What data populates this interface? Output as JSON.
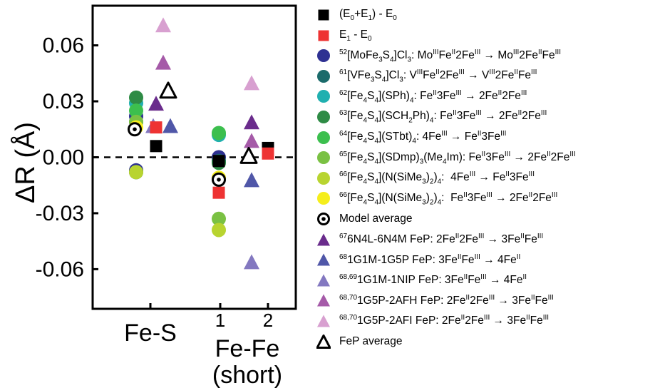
{
  "chart_data": {
    "type": "scatter",
    "ylabel": "ΔR (Å)",
    "ylim": [
      -0.07,
      0.078
    ],
    "yticks": [
      "0.06",
      "0.03",
      "0.00",
      "-0.03",
      "-0.06"
    ],
    "ytick_values": [
      0.06,
      0.03,
      0.0,
      -0.03,
      -0.06
    ],
    "x_groups": [
      {
        "label": "Fe-S"
      },
      {
        "label": "Fe-Fe",
        "sublabel": "(short)",
        "ticks": [
          "1",
          "2"
        ]
      }
    ],
    "zero_line": "dashed",
    "series": [
      {
        "name": "(E0+E1) - E0",
        "marker": "square",
        "color": "#000000",
        "points": [
          {
            "x": "Fe-S",
            "y": 0.006
          },
          {
            "x": "Fe-Fe 1",
            "y": -0.002
          },
          {
            "x": "Fe-Fe 2",
            "y": 0.005
          }
        ]
      },
      {
        "name": "E1 - E0",
        "marker": "square",
        "color": "#ee3333",
        "points": [
          {
            "x": "Fe-S",
            "y": 0.016
          },
          {
            "x": "Fe-Fe 1",
            "y": -0.019
          },
          {
            "x": "Fe-Fe 2",
            "y": 0.002
          }
        ]
      },
      {
        "name": "52[MoFe3S4]Cl3: MoIIIFeII2FeIII → MoIII2FeIIFeIII",
        "marker": "circle",
        "color": "#2e3192",
        "points": [
          {
            "x": "Fe-S",
            "y": 0.022
          },
          {
            "x": "Fe-S",
            "y": -0.007
          },
          {
            "x": "Fe-Fe 1",
            "y": 0.0
          }
        ]
      },
      {
        "name": "61[VFe3S4]Cl3: VIIIFeII2FeIII → VIII2FeIIFeIII",
        "marker": "circle",
        "color": "#1b6b6b",
        "points": [
          {
            "x": "Fe-S",
            "y": 0.019
          },
          {
            "x": "Fe-S",
            "y": -0.008
          },
          {
            "x": "Fe-Fe 1",
            "y": -0.002
          }
        ]
      },
      {
        "name": "62[Fe4S4](SPh)4: FeII3FeIII → 2FeII2FeIII",
        "marker": "circle",
        "color": "#20b0b0",
        "points": [
          {
            "x": "Fe-S",
            "y": 0.029
          },
          {
            "x": "Fe-Fe 1",
            "y": 0.012
          }
        ]
      },
      {
        "name": "63[Fe4S4](SCH2Ph)4: FeII3FeIII → 2FeII2FeIII",
        "marker": "circle",
        "color": "#2e8b45",
        "points": [
          {
            "x": "Fe-S",
            "y": 0.032
          },
          {
            "x": "Fe-Fe 1",
            "y": -0.003
          }
        ]
      },
      {
        "name": "64[Fe4S4](STbt)4: 4FeIII → FeII3FeIII",
        "marker": "circle",
        "color": "#3cbf4e",
        "points": [
          {
            "x": "Fe-S",
            "y": 0.025
          },
          {
            "x": "Fe-Fe 1",
            "y": 0.013
          }
        ]
      },
      {
        "name": "65[Fe4S4](SDmp)3(Me4Im): FeII3FeIII → 2FeII2FeIII",
        "marker": "circle",
        "color": "#7ac143",
        "points": [
          {
            "x": "Fe-S",
            "y": 0.019
          },
          {
            "x": "Fe-Fe 1",
            "y": -0.033
          }
        ]
      },
      {
        "name": "66[Fe4S4](N(SiMe3)2)4: 4FeIII → FeII3FeIII",
        "marker": "circle",
        "color": "#b8d430",
        "points": [
          {
            "x": "Fe-S",
            "y": -0.008
          },
          {
            "x": "Fe-Fe 1",
            "y": -0.039
          }
        ]
      },
      {
        "name": "66[Fe4S4](N(SiMe3)2)4: FeII3FeIII → 2FeII2FeIII",
        "marker": "circle",
        "color": "#f5ee1c",
        "points": [
          {
            "x": "Fe-S",
            "y": 0.016
          },
          {
            "x": "Fe-Fe 1",
            "y": -0.011
          }
        ]
      },
      {
        "name": "Model average",
        "marker": "circle-dot",
        "color": "#000000",
        "points": [
          {
            "x": "Fe-S",
            "y": 0.015
          },
          {
            "x": "Fe-Fe 1",
            "y": -0.012
          }
        ]
      },
      {
        "name": "676N4L-6N4M FeP: 2FeII2FeIII → 3FeIIFeIII",
        "marker": "triangle",
        "color": "#6a2c8c",
        "points": [
          {
            "x": "Fe-S",
            "y": 0.029
          },
          {
            "x": "Fe-Fe 2",
            "y": 0.019
          }
        ]
      },
      {
        "name": "681G1M-1G5P FeP: 3FeIIFeIII → 4FeII",
        "marker": "triangle",
        "color": "#5057a8",
        "points": [
          {
            "x": "Fe-S",
            "y": 0.017
          },
          {
            "x": "Fe-Fe 2",
            "y": -0.012
          }
        ]
      },
      {
        "name": "68,691G1M-1NIP FeP: 3FeIIFeIII → 4FeII",
        "marker": "triangle",
        "color": "#8378c0",
        "points": [
          {
            "x": "Fe-S",
            "y": 0.017
          },
          {
            "x": "Fe-Fe 2",
            "y": -0.056
          }
        ]
      },
      {
        "name": "68,701G5P-2AFH FeP: 2FeII2FeIII → 3FeIIFeIII",
        "marker": "triangle",
        "color": "#a55aa8",
        "points": [
          {
            "x": "Fe-S",
            "y": 0.051
          },
          {
            "x": "Fe-Fe 2",
            "y": 0.009
          }
        ]
      },
      {
        "name": "68,701G5P-2AFI FeP: 2FeII2FeIII → 3FeIIFeIII",
        "marker": "triangle",
        "color": "#d8a0d0",
        "points": [
          {
            "x": "Fe-S",
            "y": 0.071
          },
          {
            "x": "Fe-Fe 2",
            "y": 0.04
          }
        ]
      },
      {
        "name": "FeP average",
        "marker": "triangle-open",
        "color": "#000000",
        "points": [
          {
            "x": "Fe-S",
            "y": 0.036
          },
          {
            "x": "Fe-Fe 2",
            "y": 0.001
          }
        ]
      }
    ]
  },
  "legend": [
    {
      "html": "(E<sub>0</sub>+E<sub>1</sub>) - E<sub>0</sub>"
    },
    {
      "html": "E<sub>1</sub> - E<sub>0</sub>"
    },
    {
      "html": "<sup>52</sup>[MoFe<sub>3</sub>S<sub>4</sub>]Cl<sub>3</sub>: Mo<sup>III</sup>Fe<sup>II</sup>2Fe<sup>III</sup> → Mo<sup>III</sup>2Fe<sup>II</sup>Fe<sup>III</sup>"
    },
    {
      "html": "<sup>61</sup>[VFe<sub>3</sub>S<sub>4</sub>]Cl<sub>3</sub>: V<sup>III</sup>Fe<sup>II</sup>2Fe<sup>III</sup> → V<sup>III</sup>2Fe<sup>II</sup>Fe<sup>III</sup>"
    },
    {
      "html": "<sup>62</sup>[Fe<sub>4</sub>S<sub>4</sub>](SPh)<sub>4</sub>: Fe<sup>II</sup>3Fe<sup>III</sup> → 2Fe<sup>II</sup>2Fe<sup>III</sup>"
    },
    {
      "html": "<sup>63</sup>[Fe<sub>4</sub>S<sub>4</sub>](SCH<sub>2</sub>Ph)<sub>4</sub>: Fe<sup>II</sup>3Fe<sup>III</sup> → 2Fe<sup>II</sup>2Fe<sup>III</sup>"
    },
    {
      "html": "<sup>64</sup>[Fe<sub>4</sub>S<sub>4</sub>](STbt)<sub>4</sub>: 4Fe<sup>III</sup> → Fe<sup>II</sup>3Fe<sup>III</sup>"
    },
    {
      "html": "<sup>65</sup>[Fe<sub>4</sub>S<sub>4</sub>](SDmp)<sub>3</sub>(Me<sub>4</sub>Im): Fe<sup>II</sup>3Fe<sup>III</sup> → 2Fe<sup>II</sup>2Fe<sup>III</sup>"
    },
    {
      "html": "<sup>66</sup>[Fe<sub>4</sub>S<sub>4</sub>](N(SiMe<sub>3</sub>)<sub>2</sub>)<sub>4</sub>:&nbsp; 4Fe<sup>III</sup> → Fe<sup>II</sup>3Fe<sup>III</sup>"
    },
    {
      "html": "<sup>66</sup>[Fe<sub>4</sub>S<sub>4</sub>](N(SiMe<sub>3</sub>)<sub>2</sub>)<sub>4</sub>:&nbsp; Fe<sup>II</sup>3Fe<sup>III</sup> → 2Fe<sup>II</sup>2Fe<sup>III</sup>"
    },
    {
      "html": "Model average"
    },
    {
      "html": "<sup>67</sup>6N4L-6N4M FeP: 2Fe<sup>II</sup>2Fe<sup>III</sup> → 3Fe<sup>II</sup>Fe<sup>III</sup>"
    },
    {
      "html": "<sup>68</sup>1G1M-1G5P FeP: 3Fe<sup>II</sup>Fe<sup>III</sup> → 4Fe<sup>II</sup>"
    },
    {
      "html": "<sup>68,69</sup>1G1M-1NIP FeP: 3Fe<sup>II</sup>Fe<sup>III</sup> → 4Fe<sup>II</sup>"
    },
    {
      "html": "<sup>68,70</sup>1G5P-2AFH FeP: 2Fe<sup>II</sup>2Fe<sup>III</sup> → 3Fe<sup>II</sup>Fe<sup>III</sup>"
    },
    {
      "html": "<sup>68,70</sup>1G5P-2AFI FeP: 2Fe<sup>II</sup>2Fe<sup>III</sup> → 3Fe<sup>II</sup>Fe<sup>III</sup>"
    },
    {
      "html": "FeP average"
    }
  ]
}
